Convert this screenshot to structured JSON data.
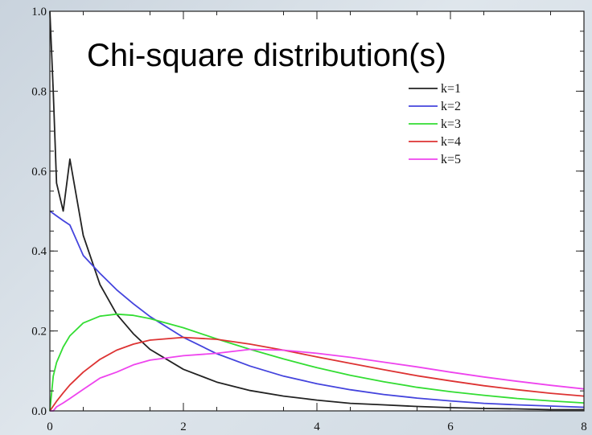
{
  "chart_data": {
    "type": "line",
    "title": "Chi-square distribution(s)",
    "xlabel": "",
    "ylabel": "",
    "xlim": [
      0,
      8
    ],
    "ylim": [
      0,
      1.0
    ],
    "x_ticks": [
      0,
      2,
      4,
      6,
      8
    ],
    "x_tick_labels": [
      "0",
      "2",
      "4",
      "6",
      "8"
    ],
    "y_ticks": [
      0.0,
      0.2,
      0.4,
      0.6,
      0.8,
      1.0
    ],
    "y_tick_labels": [
      "0.0",
      "0.2",
      "0.4",
      "0.6",
      "0.8",
      "1.0"
    ],
    "grid": false,
    "legend_position": "top-right",
    "x": [
      0,
      0.05,
      0.1,
      0.2,
      0.3,
      0.5,
      0.75,
      1,
      1.25,
      1.5,
      2,
      2.5,
      3,
      3.5,
      4,
      4.5,
      5,
      5.5,
      6,
      6.5,
      7,
      7.5,
      8
    ],
    "series": [
      {
        "name": "k=1",
        "color": "#222222",
        "values": [
          1.0,
          0.8,
          0.57,
          0.5,
          0.63,
          0.439,
          0.316,
          0.242,
          0.193,
          0.154,
          0.104,
          0.072,
          0.051,
          0.037,
          0.027,
          0.019,
          0.015,
          0.011,
          0.008,
          0.006,
          0.005,
          0.003,
          0.003
        ]
      },
      {
        "name": "k=2",
        "color": "#4444dd",
        "values": [
          0.5,
          0.494,
          0.488,
          0.476,
          0.465,
          0.389,
          0.344,
          0.303,
          0.268,
          0.236,
          0.184,
          0.143,
          0.112,
          0.087,
          0.068,
          0.053,
          0.041,
          0.032,
          0.025,
          0.019,
          0.015,
          0.012,
          0.009
        ]
      },
      {
        "name": "k=3",
        "color": "#33dd33",
        "values": [
          0.0,
          0.087,
          0.121,
          0.16,
          0.188,
          0.22,
          0.237,
          0.242,
          0.239,
          0.231,
          0.208,
          0.18,
          0.154,
          0.13,
          0.108,
          0.089,
          0.073,
          0.059,
          0.048,
          0.039,
          0.031,
          0.025,
          0.02
        ]
      },
      {
        "name": "k=4",
        "color": "#dd3333",
        "values": [
          0.0,
          0.012,
          0.024,
          0.045,
          0.065,
          0.097,
          0.129,
          0.152,
          0.167,
          0.177,
          0.184,
          0.179,
          0.167,
          0.152,
          0.135,
          0.119,
          0.103,
          0.088,
          0.075,
          0.063,
          0.053,
          0.044,
          0.037
        ]
      },
      {
        "name": "k=5",
        "color": "#ee44ee",
        "values": [
          0.0,
          0.0,
          0.01,
          0.02,
          0.031,
          0.054,
          0.082,
          0.097,
          0.115,
          0.127,
          0.138,
          0.144,
          0.154,
          0.152,
          0.144,
          0.134,
          0.122,
          0.11,
          0.097,
          0.085,
          0.074,
          0.064,
          0.055
        ]
      }
    ]
  }
}
